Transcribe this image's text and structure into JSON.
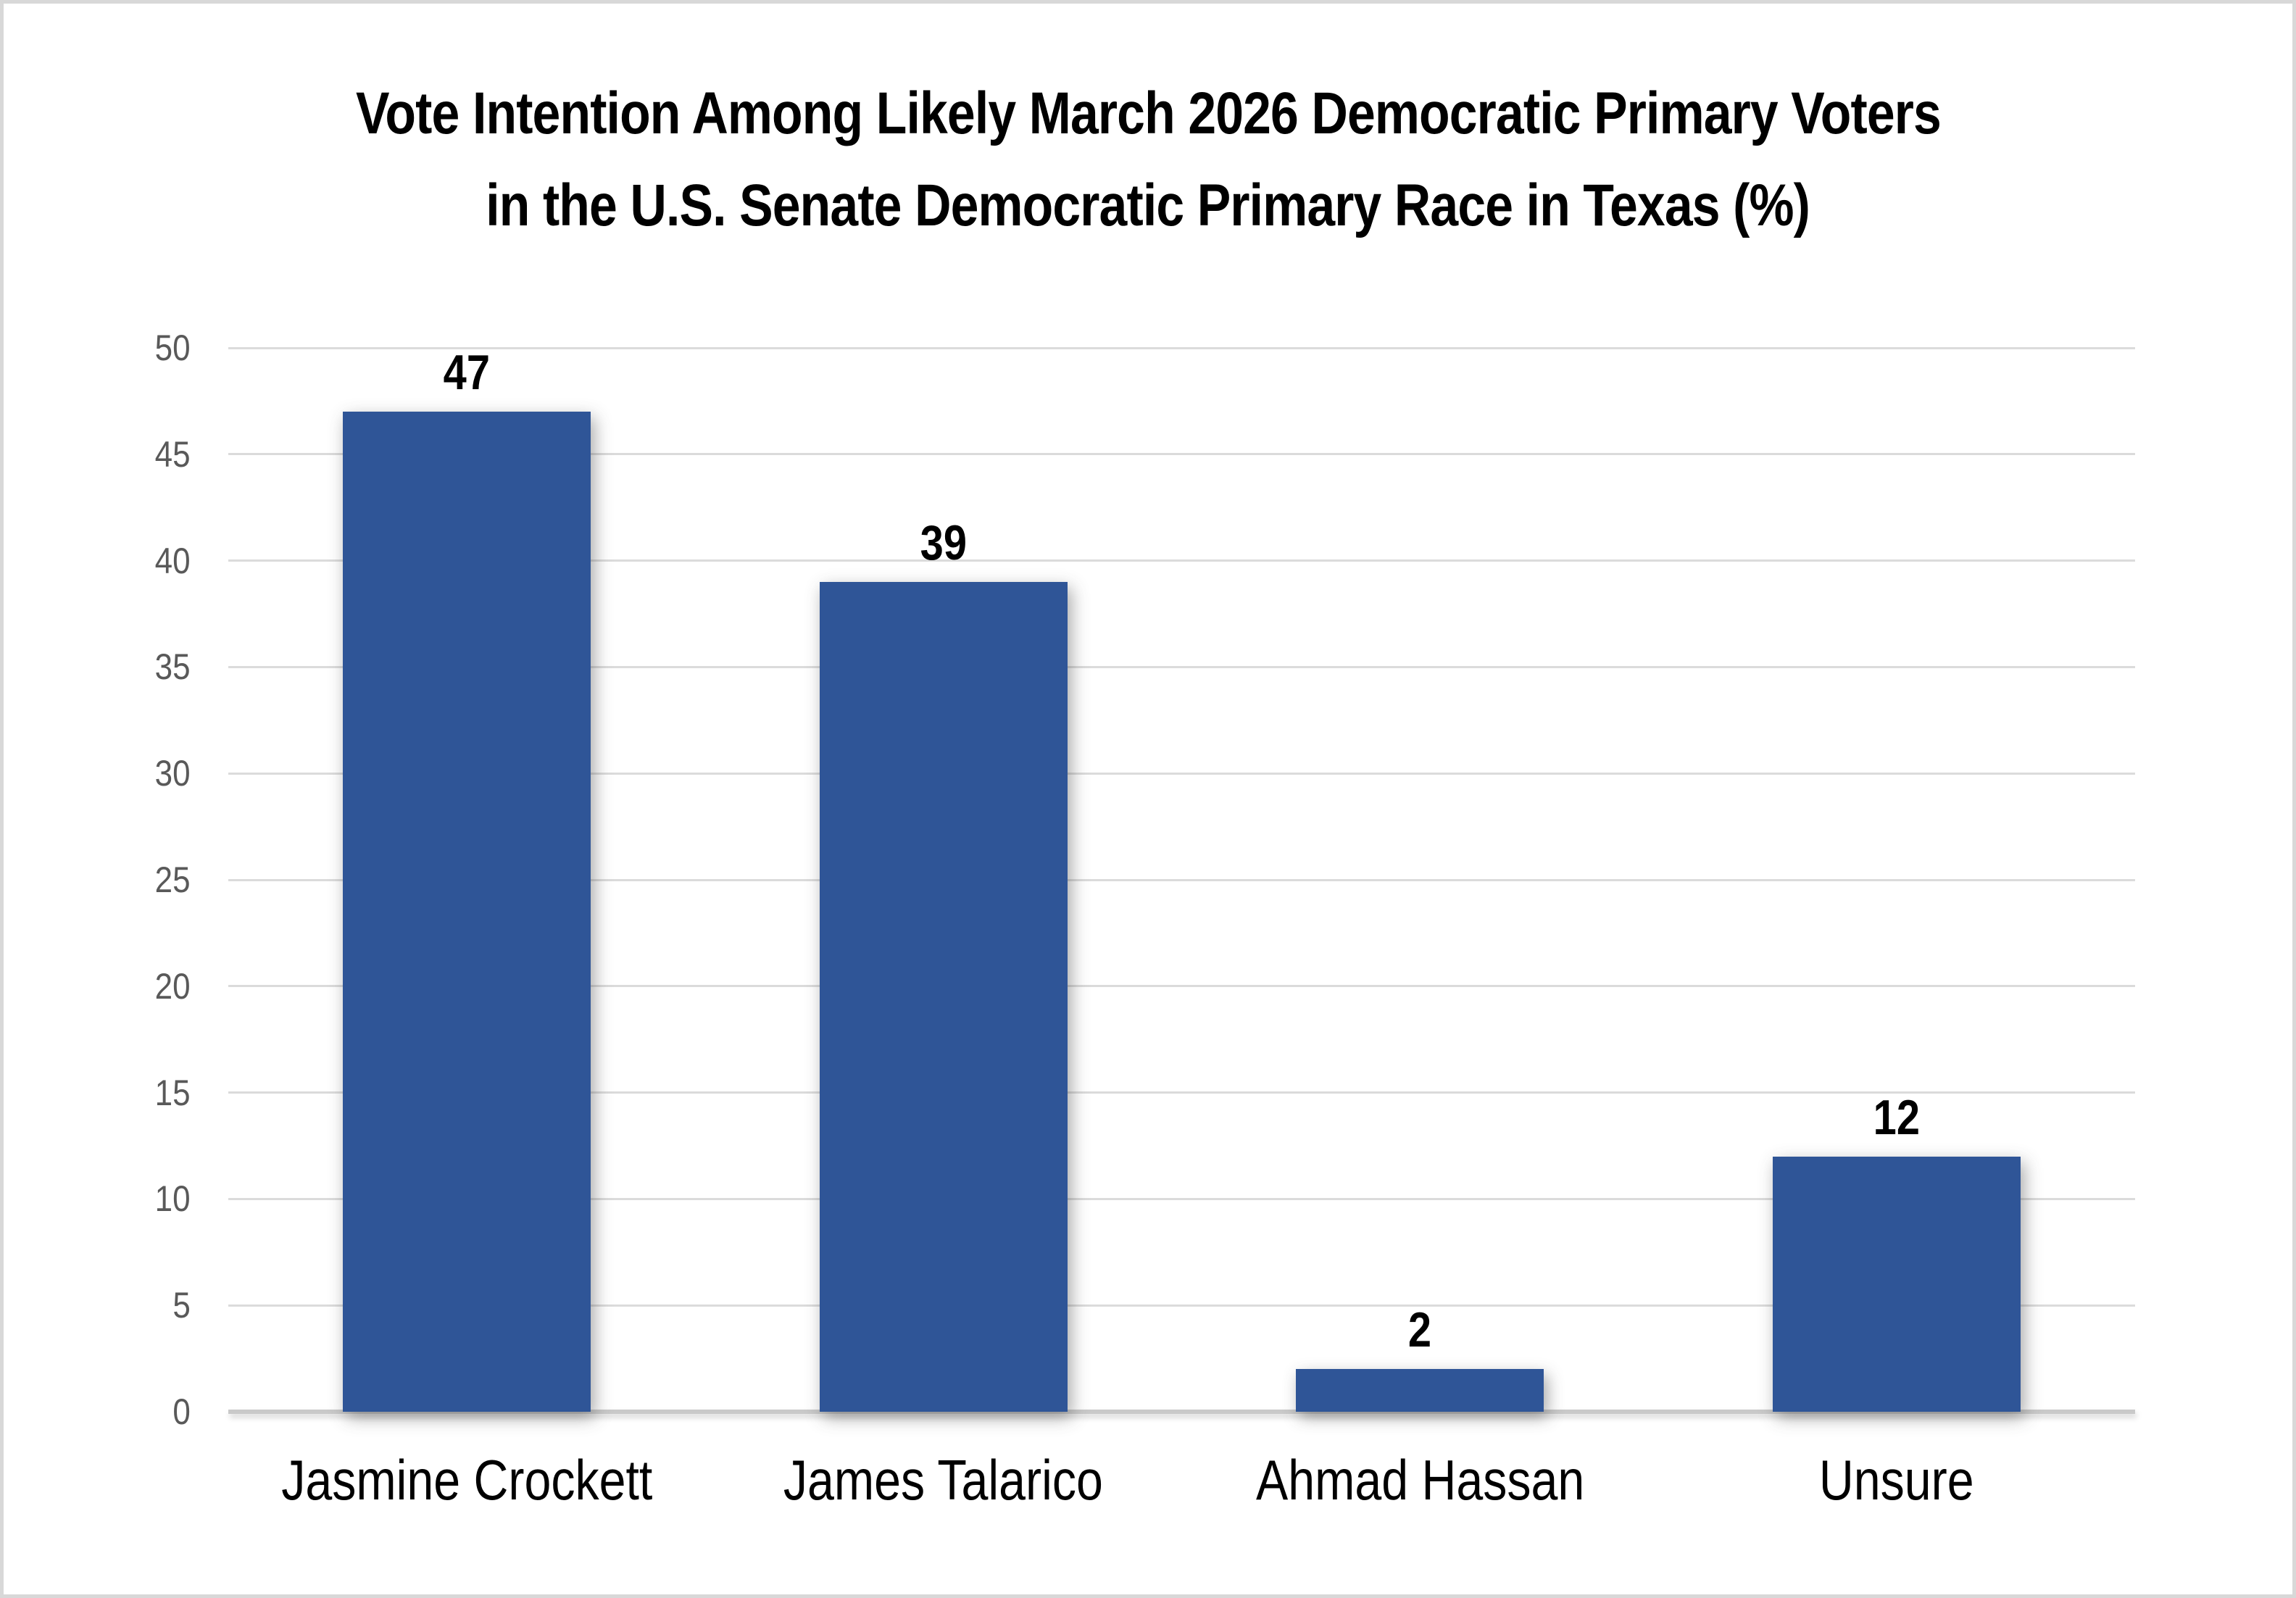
{
  "chart_data": {
    "type": "bar",
    "title": "Vote Intention Among Likely March 2026 Democratic Primary Voters in the U.S. Senate Democratic Primary Race in Texas (%)",
    "title_lines": [
      "Vote Intention Among Likely March 2026 Democratic Primary Voters",
      "in the U.S. Senate Democratic Primary Race in Texas (%)"
    ],
    "categories": [
      "Jasmine Crockett",
      "James Talarico",
      "Ahmad Hassan",
      "Unsure"
    ],
    "values": [
      47,
      39,
      2,
      12
    ],
    "data_labels": [
      "47",
      "39",
      "2",
      "12"
    ],
    "xlabel": "",
    "ylabel": "",
    "ylim": [
      0,
      50
    ],
    "ytick_step": 5,
    "yticks": [
      0,
      5,
      10,
      15,
      20,
      25,
      30,
      35,
      40,
      45,
      50
    ],
    "grid": true,
    "legend": false,
    "colors": {
      "bar": "#2F5597",
      "gridline": "#DBDBDB",
      "axis_line": "#C9C9C9",
      "tick_label": "#595959",
      "title": "#000000",
      "category_label": "#000000",
      "value_label": "#000000",
      "canvas_border": "#D8D8D8",
      "background": "#FFFFFF"
    }
  }
}
